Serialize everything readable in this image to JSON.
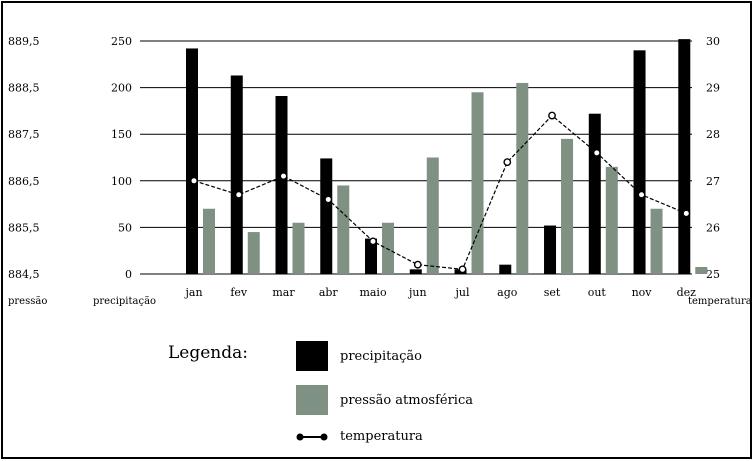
{
  "chart_data": {
    "type": "bar",
    "categories": [
      "jan",
      "fev",
      "mar",
      "abr",
      "maio",
      "jun",
      "jul",
      "ago",
      "set",
      "out",
      "nov",
      "dez"
    ],
    "series": [
      {
        "name": "precipitação",
        "type": "bar",
        "axis": "precipitação",
        "values": [
          242,
          213,
          191,
          124,
          38,
          5,
          5,
          10,
          52,
          172,
          240,
          252
        ],
        "color": "#000000"
      },
      {
        "name": "pressão atmosférica",
        "type": "bar",
        "axis": "pressão",
        "values": [
          885.9,
          885.4,
          885.6,
          886.4,
          885.6,
          887.0,
          888.4,
          888.6,
          887.4,
          886.8,
          885.9,
          884.65
        ],
        "color": "#7f9183"
      },
      {
        "name": "temperatura",
        "type": "line",
        "axis": "temperatura",
        "values": [
          27.0,
          26.7,
          27.1,
          26.6,
          25.7,
          25.2,
          25.1,
          27.4,
          28.4,
          27.6,
          26.7,
          26.3
        ],
        "color": "#000000"
      }
    ],
    "axes": {
      "pressao": {
        "label": "pressão",
        "ticks": [
          "884,5",
          "885,5",
          "886,5",
          "887,5",
          "888,5",
          "889,5"
        ],
        "range": [
          884.5,
          889.5
        ]
      },
      "precipitacao": {
        "label": "precipitação",
        "ticks": [
          "0",
          "50",
          "100",
          "150",
          "200",
          "250"
        ],
        "range": [
          0,
          250
        ]
      },
      "temperatura": {
        "label": "temperatura",
        "ticks": [
          "25",
          "26",
          "27",
          "28",
          "29",
          "30"
        ],
        "range": [
          25,
          30
        ]
      }
    },
    "grid": true,
    "legend_position": "bottom"
  },
  "legend": {
    "title": "Legenda:",
    "items": [
      {
        "label": "precipitação",
        "color": "#000000"
      },
      {
        "label": "pressão atmosférica",
        "color": "#7f9183"
      },
      {
        "label": "temperatura",
        "color": "#000000"
      }
    ]
  }
}
